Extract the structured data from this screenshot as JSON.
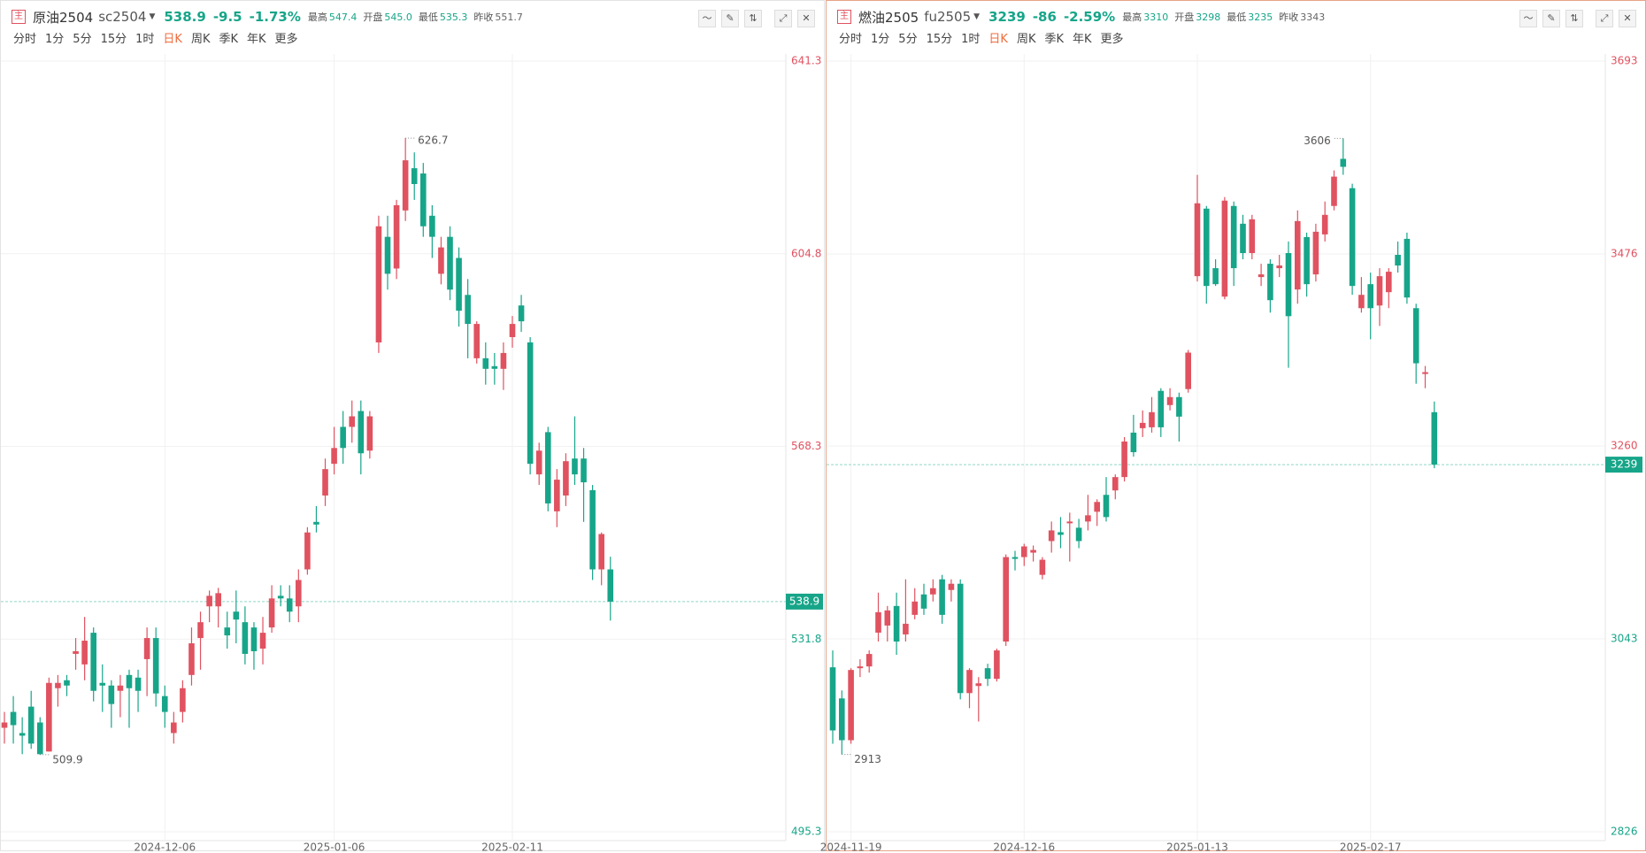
{
  "tabs": [
    "分时",
    "1分",
    "5分",
    "15分",
    "1时",
    "日K",
    "周K",
    "季K",
    "年K",
    "更多"
  ],
  "active_tab": 5,
  "chart_data": [
    {
      "type": "candlestick",
      "header": {
        "badge": "主",
        "name": "原油2504",
        "code": "sc2504",
        "last": "538.9",
        "change": "-9.5",
        "percent": "-1.73%",
        "high_label": "最高",
        "high": "547.4",
        "open_label": "开盘",
        "open": "545.0",
        "low_label": "最低",
        "low": "535.3",
        "prev_label": "昨收",
        "prev": "551.7"
      },
      "categories": [
        null,
        null,
        null,
        null,
        null,
        null,
        null,
        null,
        null,
        null,
        null,
        null,
        null,
        null,
        null,
        null,
        null,
        null,
        "2024-12-06",
        null,
        null,
        null,
        null,
        null,
        null,
        null,
        null,
        null,
        null,
        null,
        null,
        null,
        null,
        null,
        null,
        null,
        null,
        "2025-01-06",
        null,
        null,
        null,
        null,
        null,
        null,
        null,
        null,
        null,
        null,
        null,
        null,
        null,
        null,
        null,
        null,
        null,
        null,
        null,
        "2025-02-11",
        null,
        null,
        null,
        null,
        null,
        null,
        null,
        null,
        null,
        null,
        null
      ],
      "open": [
        515,
        518,
        514,
        519,
        516,
        510.5,
        522.5,
        524,
        529,
        527,
        533,
        523.5,
        523,
        522,
        525,
        524.5,
        528,
        532,
        521,
        514,
        518,
        525,
        532,
        538,
        538,
        534,
        537,
        535,
        534,
        530,
        534,
        540,
        539.5,
        538,
        545,
        554,
        559,
        565,
        572,
        572,
        575,
        567.5,
        588,
        608,
        602,
        613,
        621,
        620,
        612,
        601,
        608,
        604,
        597,
        585,
        585,
        583.5,
        583,
        589,
        595,
        588,
        563,
        571,
        556,
        559,
        566,
        566,
        560,
        545,
        545
      ],
      "high": [
        518,
        521,
        517,
        522,
        517,
        524.5,
        525,
        525,
        532,
        536,
        534,
        527,
        524,
        525,
        526,
        526,
        534,
        534,
        523,
        518,
        524,
        534,
        537,
        541,
        541.5,
        537,
        541,
        538,
        535,
        536,
        542,
        542,
        542,
        545,
        553,
        557,
        566,
        572,
        575,
        577,
        577,
        575,
        612,
        612,
        615,
        626.7,
        624,
        622,
        614,
        608,
        610,
        606,
        600,
        592,
        588,
        586,
        588,
        593,
        597,
        589,
        569,
        572,
        564,
        567,
        574,
        568,
        561,
        552,
        547.4
      ],
      "low": [
        512,
        512,
        510,
        511,
        509.9,
        510.5,
        519,
        521,
        526,
        524,
        520,
        518,
        515,
        517,
        515,
        518,
        521,
        519,
        515,
        512,
        516,
        523,
        526,
        535,
        534,
        530,
        531,
        527,
        526,
        527,
        533,
        538,
        535,
        535,
        544,
        552,
        557,
        563,
        565,
        569,
        563,
        566,
        586,
        598,
        600,
        611,
        615,
        608,
        604,
        599,
        596,
        591,
        585,
        584,
        580,
        580,
        579,
        587,
        590,
        563,
        561,
        556,
        553,
        557,
        561,
        554,
        543,
        542,
        535.3
      ],
      "close": [
        516,
        515.5,
        513.5,
        512,
        510,
        523.5,
        523.5,
        523,
        529.5,
        531.5,
        522,
        523,
        519.5,
        523,
        522.5,
        522,
        532,
        521.5,
        518,
        516,
        522.5,
        531,
        535,
        540,
        540.5,
        532.5,
        535.5,
        529,
        529.5,
        533,
        539.5,
        539.5,
        537,
        543,
        552,
        553.5,
        564,
        568,
        568,
        574,
        567,
        574,
        610,
        601,
        614,
        622.5,
        618,
        610,
        608,
        606,
        598,
        594,
        591.5,
        591.5,
        583,
        583,
        586,
        591.5,
        592,
        565,
        567.5,
        557.5,
        562,
        565.5,
        563,
        561.5,
        545,
        551.7,
        538.9
      ],
      "up_color": "#e05260",
      "down_color": "#17a589",
      "ylim": [
        495.3,
        641.3
      ],
      "yticks": [
        495.3,
        531.8,
        568.3,
        604.8,
        641.3
      ]
    },
    {
      "type": "candlestick",
      "header": {
        "badge": "主",
        "name": "燃油2505",
        "code": "fu2505",
        "last": "3239",
        "change": "-86",
        "percent": "-2.59%",
        "high_label": "最高",
        "high": "3310",
        "open_label": "开盘",
        "open": "3298",
        "low_label": "最低",
        "low": "3235",
        "prev_label": "昨收",
        "prev": "3343"
      },
      "categories": [
        null,
        null,
        "2024-11-19",
        null,
        null,
        null,
        null,
        null,
        null,
        null,
        null,
        null,
        null,
        null,
        null,
        null,
        null,
        null,
        null,
        null,
        null,
        "2024-12-16",
        null,
        null,
        null,
        null,
        null,
        null,
        null,
        null,
        null,
        null,
        null,
        null,
        null,
        null,
        null,
        null,
        null,
        null,
        "2025-01-13",
        null,
        null,
        null,
        null,
        null,
        null,
        null,
        null,
        null,
        null,
        null,
        null,
        null,
        null,
        null,
        null,
        null,
        null,
        "2025-02-17",
        null,
        null,
        null,
        null,
        null,
        null,
        null
      ],
      "open": [
        3011,
        2976,
        2929,
        3010,
        3012,
        3050,
        3058,
        3080,
        3048,
        3070,
        3093,
        3093,
        3110,
        3098,
        3105,
        2982,
        2990,
        3010,
        2998,
        3040,
        3135,
        3135,
        3140,
        3115,
        3153,
        3163,
        3173,
        3168,
        3175,
        3186,
        3205,
        3210,
        3225,
        3275,
        3280,
        3281,
        3322,
        3306,
        3315,
        3324,
        3451,
        3527,
        3460,
        3428,
        3530,
        3510,
        3477,
        3450,
        3465,
        3460,
        3477,
        3436,
        3495,
        3453,
        3498,
        3530,
        3583,
        3550,
        3415,
        3442,
        3418,
        3433,
        3475,
        3493,
        3415,
        3341,
        3298
      ],
      "high": [
        3030,
        2985,
        3010,
        3020,
        3030,
        3095,
        3080,
        3095,
        3110,
        3100,
        3105,
        3110,
        3115,
        3110,
        3110,
        3010,
        3000,
        3015,
        3032,
        3138,
        3142,
        3150,
        3148,
        3135,
        3175,
        3180,
        3185,
        3178,
        3205,
        3200,
        3225,
        3228,
        3270,
        3295,
        3300,
        3315,
        3325,
        3325,
        3320,
        3368,
        3565,
        3530,
        3470,
        3540,
        3535,
        3520,
        3520,
        3465,
        3470,
        3475,
        3490,
        3525,
        3500,
        3510,
        3535,
        3570,
        3606,
        3555,
        3450,
        3455,
        3460,
        3460,
        3490,
        3500,
        3420,
        3350,
        3310
      ],
      "low": [
        2925,
        2913,
        2925,
        3000,
        3005,
        3040,
        3040,
        3025,
        3040,
        3065,
        3070,
        3085,
        3060,
        3085,
        2975,
        2965,
        2950,
        2990,
        2995,
        3035,
        3120,
        3125,
        3130,
        3110,
        3140,
        3145,
        3130,
        3145,
        3165,
        3170,
        3175,
        3200,
        3220,
        3248,
        3270,
        3275,
        3270,
        3300,
        3265,
        3320,
        3445,
        3420,
        3440,
        3425,
        3440,
        3470,
        3470,
        3440,
        3410,
        3450,
        3348,
        3420,
        3428,
        3445,
        3490,
        3525,
        3565,
        3430,
        3410,
        3380,
        3395,
        3415,
        3455,
        3420,
        3330,
        3325,
        3235
      ],
      "close": [
        2940,
        2929,
        3008,
        3012,
        3026,
        3073,
        3075,
        3040,
        3060,
        3085,
        3077,
        3100,
        3070,
        3105,
        2982,
        3008,
        2993,
        2998,
        3030,
        3135,
        3133,
        3147,
        3143,
        3132,
        3165,
        3160,
        3175,
        3153,
        3182,
        3197,
        3180,
        3225,
        3265,
        3253,
        3286,
        3298,
        3281,
        3315,
        3293,
        3365,
        3533,
        3440,
        3442,
        3536,
        3460,
        3477,
        3515,
        3453,
        3424,
        3463,
        3406,
        3513,
        3442,
        3501,
        3520,
        3563,
        3574,
        3440,
        3430,
        3415,
        3451,
        3456,
        3463,
        3427,
        3353,
        3343,
        3239
      ],
      "up_color": "#e05260",
      "down_color": "#17a589",
      "ylim": [
        2826,
        3693
      ],
      "yticks": [
        2826,
        3043,
        3260,
        3476,
        3693
      ]
    }
  ]
}
